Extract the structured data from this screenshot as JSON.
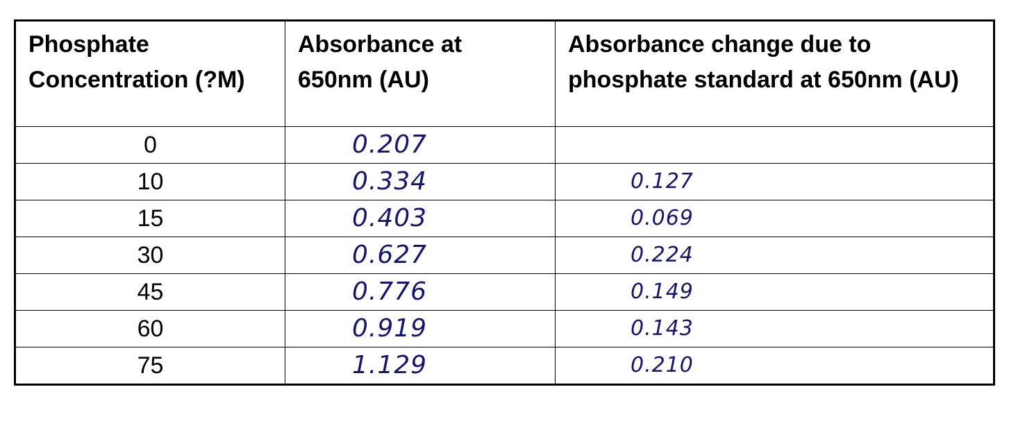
{
  "table": {
    "headers": [
      "Phosphate Concentration (?M)",
      "Absorbance at 650nm (AU)",
      "Absorbance change due to phosphate standard at 650nm (AU)"
    ],
    "rows": [
      {
        "concentration": "0",
        "absorbance": "0.207",
        "change": ""
      },
      {
        "concentration": "10",
        "absorbance": "0.334",
        "change": "0.127"
      },
      {
        "concentration": "15",
        "absorbance": "0.403",
        "change": "0.069"
      },
      {
        "concentration": "30",
        "absorbance": "0.627",
        "change": "0.224"
      },
      {
        "concentration": "45",
        "absorbance": "0.776",
        "change": "0.149"
      },
      {
        "concentration": "60",
        "absorbance": "0.919",
        "change": "0.143"
      },
      {
        "concentration": "75",
        "absorbance": "1.129",
        "change": "0.210"
      }
    ]
  }
}
